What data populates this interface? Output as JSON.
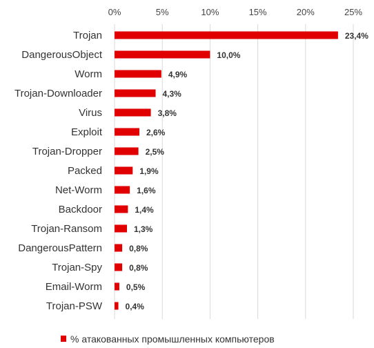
{
  "chart_data": {
    "type": "bar",
    "orientation": "horizontal",
    "categories": [
      "Trojan",
      "DangerousObject",
      "Worm",
      "Trojan-Downloader",
      "Virus",
      "Exploit",
      "Trojan-Dropper",
      "Packed",
      "Net-Worm",
      "Backdoor",
      "Trojan-Ransom",
      "DangerousPattern",
      "Trojan-Spy",
      "Email-Worm",
      "Trojan-PSW"
    ],
    "series": [
      {
        "name": "% атакованных промышленных компьютеров",
        "values": [
          23.4,
          10.0,
          4.9,
          4.3,
          3.8,
          2.6,
          2.5,
          1.9,
          1.6,
          1.4,
          1.3,
          0.8,
          0.8,
          0.5,
          0.4
        ],
        "labels": [
          "23,4%",
          "10,0%",
          "4,9%",
          "4,3%",
          "3,8%",
          "2,6%",
          "2,5%",
          "1,9%",
          "1,6%",
          "1,4%",
          "1,3%",
          "0,8%",
          "0,8%",
          "0,5%",
          "0,4%"
        ],
        "color": "#e00000"
      }
    ],
    "xlim": [
      0,
      25
    ],
    "ticks": [
      0,
      5,
      10,
      15,
      20,
      25
    ],
    "tick_labels": [
      "0%",
      "5%",
      "10%",
      "15%",
      "20%",
      "25%"
    ],
    "x_axis_position": "top",
    "grid": true,
    "legend": "bottom",
    "title": "",
    "xlabel": "",
    "ylabel": ""
  },
  "colors": {
    "bar": "#e00000",
    "grid": "#d9d9d9",
    "text": "#333333"
  }
}
